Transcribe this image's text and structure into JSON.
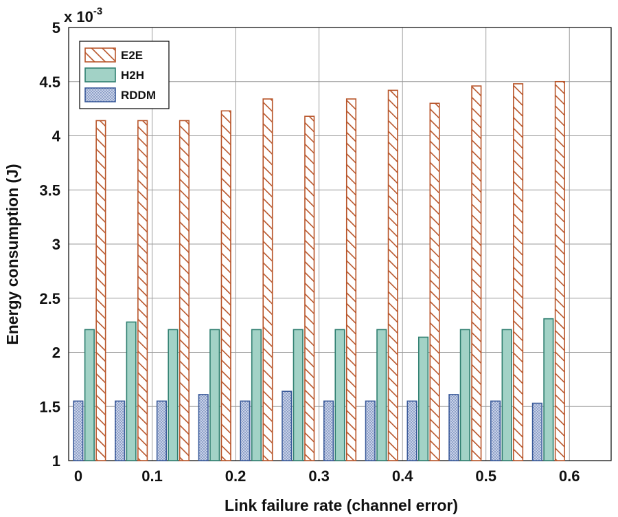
{
  "chart_data": {
    "type": "bar",
    "title": "",
    "xlabel": "Link failure rate (channel error)",
    "ylabel": "Energy consumption (J)",
    "y_multiplier": {
      "base": "x 10",
      "exponent": "-3"
    },
    "ylim": [
      1,
      5
    ],
    "yticks": [
      1,
      1.5,
      2,
      2.5,
      3,
      3.5,
      4,
      4.5,
      5
    ],
    "ytick_labels": [
      "1",
      "1.5",
      "2",
      "2.5",
      "3",
      "3.5",
      "4",
      "4.5",
      "5"
    ],
    "xlim": [
      0,
      0.65
    ],
    "xticks": [
      0,
      0.1,
      0.2,
      0.3,
      0.4,
      0.5,
      0.6
    ],
    "xtick_labels": [
      "0",
      "0.1",
      "0.2",
      "0.3",
      "0.4",
      "0.5",
      "0.6"
    ],
    "x": [
      0.025,
      0.075,
      0.125,
      0.175,
      0.225,
      0.275,
      0.325,
      0.375,
      0.425,
      0.475,
      0.525,
      0.575,
      0.625
    ],
    "grid": true,
    "legend": "top-left",
    "series": [
      {
        "name": "RDDM",
        "color": "#3a5a9a",
        "fill": "#c9d2e8",
        "pattern": "dots",
        "values": [
          1.55,
          1.55,
          1.55,
          1.61,
          1.55,
          1.64,
          1.55,
          1.55,
          1.55,
          1.61,
          1.55,
          1.53,
          null
        ]
      },
      {
        "name": "H2H",
        "color": "#2f7f70",
        "fill": "#a2d2c6",
        "pattern": "solid",
        "values": [
          2.21,
          2.28,
          2.21,
          2.21,
          2.21,
          2.21,
          2.21,
          2.21,
          2.14,
          2.21,
          2.21,
          2.31,
          null
        ]
      },
      {
        "name": "E2E",
        "color": "#b8552a",
        "fill": "#ffffff",
        "pattern": "hatch",
        "values": [
          4.14,
          4.14,
          4.14,
          4.23,
          4.34,
          4.18,
          4.34,
          4.42,
          4.3,
          4.46,
          4.48,
          4.5,
          null
        ]
      }
    ]
  }
}
